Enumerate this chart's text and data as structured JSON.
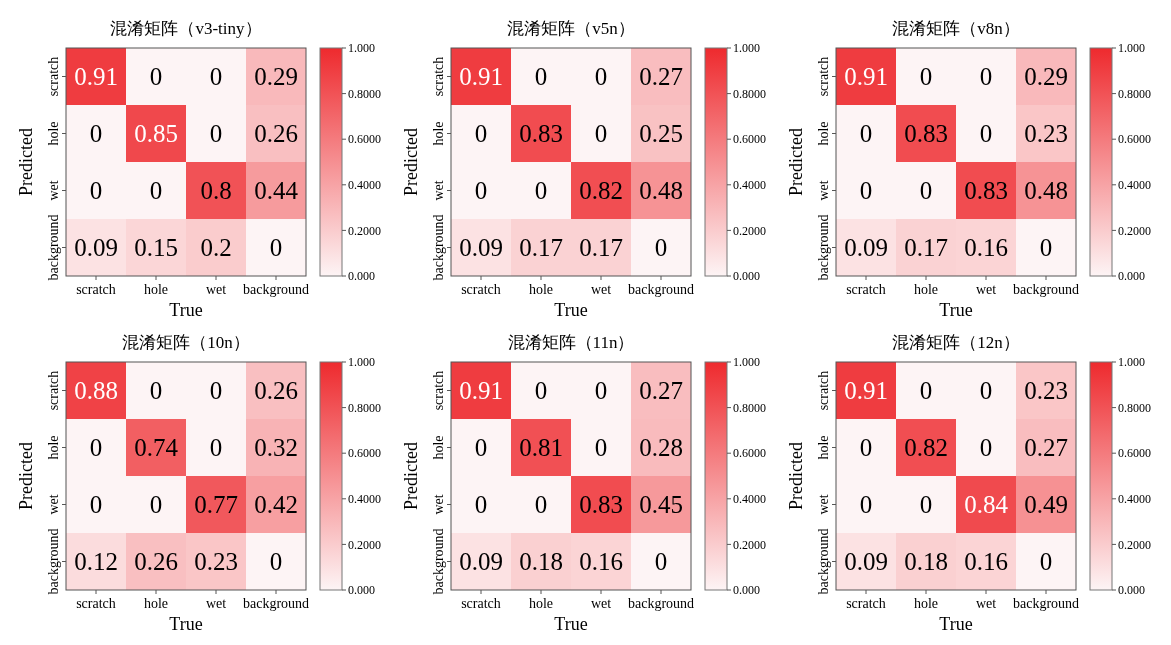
{
  "chart_data": [
    {
      "type": "heatmap",
      "title": "混淆矩阵（v3-tiny）",
      "xlabel": "True",
      "ylabel": "Predicted",
      "categories": [
        "scratch",
        "hole",
        "wet",
        "background"
      ],
      "y_categories": [
        "scratch",
        "hole",
        "wet",
        "background"
      ],
      "cells": [
        [
          0.91,
          0,
          0,
          0.29
        ],
        [
          0,
          0.85,
          0,
          0.26
        ],
        [
          0,
          0,
          0.8,
          0.44
        ],
        [
          0.09,
          0.15,
          0.2,
          0
        ]
      ],
      "data_labels": true,
      "clim": [
        0,
        1
      ],
      "cticks": [
        {
          "value": 0,
          "label": "0.000"
        },
        {
          "value": 0.2,
          "label": "0.2000"
        },
        {
          "value": 0.4,
          "label": "0.4000"
        },
        {
          "value": 0.6,
          "label": "0.6000"
        },
        {
          "value": 0.8,
          "label": "0.8000"
        },
        {
          "value": 1,
          "label": "1.000"
        }
      ]
    },
    {
      "type": "heatmap",
      "title": "混淆矩阵（v5n）",
      "xlabel": "True",
      "ylabel": "Predicted",
      "categories": [
        "scratch",
        "hole",
        "wet",
        "background"
      ],
      "y_categories": [
        "scratch",
        "hole",
        "wet",
        "background"
      ],
      "cells": [
        [
          0.91,
          0,
          0,
          0.27
        ],
        [
          0,
          0.83,
          0,
          0.25
        ],
        [
          0,
          0,
          0.82,
          0.48
        ],
        [
          0.09,
          0.17,
          0.17,
          0
        ]
      ],
      "data_labels": true,
      "clim": [
        0,
        1
      ],
      "cticks": [
        {
          "value": 0,
          "label": "0.000"
        },
        {
          "value": 0.2,
          "label": "0.2000"
        },
        {
          "value": 0.4,
          "label": "0.4000"
        },
        {
          "value": 0.6,
          "label": "0.6000"
        },
        {
          "value": 0.8,
          "label": "0.8000"
        },
        {
          "value": 1,
          "label": "1.000"
        }
      ]
    },
    {
      "type": "heatmap",
      "title": "混淆矩阵（v8n）",
      "xlabel": "True",
      "ylabel": "Predicted",
      "categories": [
        "scratch",
        "hole",
        "wet",
        "background"
      ],
      "y_categories": [
        "scratch",
        "hole",
        "wet",
        "background"
      ],
      "cells": [
        [
          0.91,
          0,
          0,
          0.29
        ],
        [
          0,
          0.83,
          0,
          0.23
        ],
        [
          0,
          0,
          0.83,
          0.48
        ],
        [
          0.09,
          0.17,
          0.16,
          0
        ]
      ],
      "data_labels": true,
      "clim": [
        0,
        1
      ],
      "cticks": [
        {
          "value": 0,
          "label": "0.000"
        },
        {
          "value": 0.2,
          "label": "0.2000"
        },
        {
          "value": 0.4,
          "label": "0.4000"
        },
        {
          "value": 0.6,
          "label": "0.6000"
        },
        {
          "value": 0.8,
          "label": "0.8000"
        },
        {
          "value": 1,
          "label": "1.000"
        }
      ]
    },
    {
      "type": "heatmap",
      "title": "混淆矩阵（10n）",
      "xlabel": "True",
      "ylabel": "Predicted",
      "categories": [
        "scratch",
        "hole",
        "wet",
        "background"
      ],
      "y_categories": [
        "scratch",
        "hole",
        "wet",
        "background"
      ],
      "cells": [
        [
          0.88,
          0,
          0,
          0.26
        ],
        [
          0,
          0.74,
          0,
          0.32
        ],
        [
          0,
          0,
          0.77,
          0.42
        ],
        [
          0.12,
          0.26,
          0.23,
          0
        ]
      ],
      "data_labels": true,
      "clim": [
        0,
        1
      ],
      "cticks": [
        {
          "value": 0,
          "label": "0.000"
        },
        {
          "value": 0.2,
          "label": "0.2000"
        },
        {
          "value": 0.4,
          "label": "0.4000"
        },
        {
          "value": 0.6,
          "label": "0.6000"
        },
        {
          "value": 0.8,
          "label": "0.8000"
        },
        {
          "value": 1,
          "label": "1.000"
        }
      ]
    },
    {
      "type": "heatmap",
      "title": "混淆矩阵（11n）",
      "xlabel": "True",
      "ylabel": "Predicted",
      "categories": [
        "scratch",
        "hole",
        "wet",
        "background"
      ],
      "y_categories": [
        "scratch",
        "hole",
        "wet",
        "background"
      ],
      "cells": [
        [
          0.91,
          0,
          0,
          0.27
        ],
        [
          0,
          0.81,
          0,
          0.28
        ],
        [
          0,
          0,
          0.83,
          0.45
        ],
        [
          0.09,
          0.18,
          0.16,
          0
        ]
      ],
      "data_labels": true,
      "clim": [
        0,
        1
      ],
      "cticks": [
        {
          "value": 0,
          "label": "0.000"
        },
        {
          "value": 0.2,
          "label": "0.2000"
        },
        {
          "value": 0.4,
          "label": "0.4000"
        },
        {
          "value": 0.6,
          "label": "0.6000"
        },
        {
          "value": 0.8,
          "label": "0.8000"
        },
        {
          "value": 1,
          "label": "1.000"
        }
      ]
    },
    {
      "type": "heatmap",
      "title": "混淆矩阵（12n）",
      "xlabel": "True",
      "ylabel": "Predicted",
      "categories": [
        "scratch",
        "hole",
        "wet",
        "background"
      ],
      "y_categories": [
        "scratch",
        "hole",
        "wet",
        "background"
      ],
      "cells": [
        [
          0.91,
          0,
          0,
          0.23
        ],
        [
          0,
          0.82,
          0,
          0.27
        ],
        [
          0,
          0,
          0.84,
          0.49
        ],
        [
          0.09,
          0.18,
          0.16,
          0
        ]
      ],
      "data_labels": true,
      "clim": [
        0,
        1
      ],
      "cticks": [
        {
          "value": 0,
          "label": "0.000"
        },
        {
          "value": 0.2,
          "label": "0.2000"
        },
        {
          "value": 0.4,
          "label": "0.4000"
        },
        {
          "value": 0.6,
          "label": "0.6000"
        },
        {
          "value": 0.8,
          "label": "0.8000"
        },
        {
          "value": 1,
          "label": "1.000"
        }
      ]
    }
  ]
}
